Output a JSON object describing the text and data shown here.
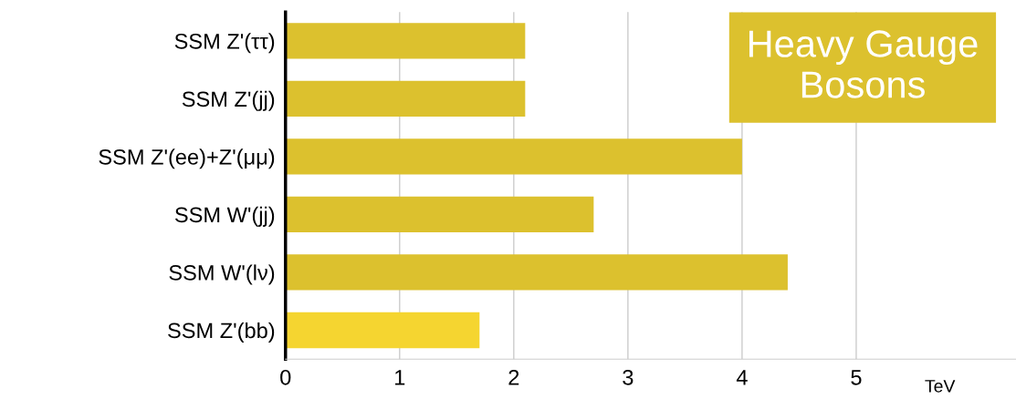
{
  "chart_data": {
    "type": "bar",
    "orientation": "horizontal",
    "title": "Heavy Gauge\nBosons",
    "xlabel": "TeV",
    "categories": [
      "SSM Z'(ττ)",
      "SSM Z'(jj)",
      "SSM Z'(ee)+Z'(μμ)",
      "SSM W'(jj)",
      "SSM W'(lν)",
      "SSM Z'(bb)"
    ],
    "values": [
      2.1,
      2.1,
      4.0,
      2.7,
      4.4,
      1.7
    ],
    "colors": [
      "#dcc12e",
      "#dcc12e",
      "#dcc12e",
      "#dcc12e",
      "#dcc12e",
      "#f5d530"
    ],
    "xlim": [
      0,
      6.4
    ],
    "xticks": [
      0,
      1,
      2,
      3,
      4,
      5
    ],
    "grid": "x",
    "legend": false
  }
}
